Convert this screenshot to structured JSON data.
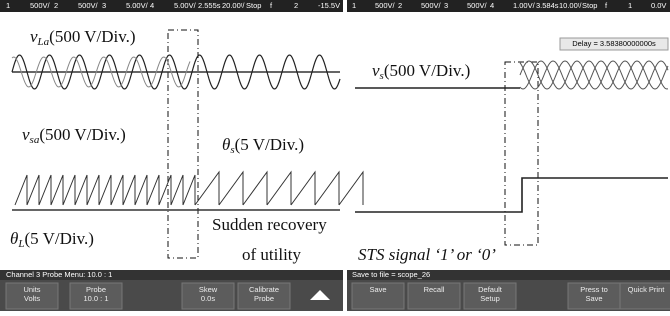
{
  "left_scope": {
    "status_bar": [
      "1",
      "500V/",
      "2",
      "500V/",
      "3",
      "5.00V/",
      "4",
      "5.00V/",
      "2.555s",
      "20.00ᵗ/",
      "Stop",
      "f",
      "2",
      "-15.5V"
    ],
    "annotations": {
      "v_la": {
        "symbol": "v",
        "sub": "La",
        "text": "(500 V/Div.)"
      },
      "v_sa": {
        "symbol": "v",
        "sub": "sa",
        "text": "(500  V/Div.)"
      },
      "theta_s": {
        "symbol": "θ",
        "sub": "s",
        "text": "(5 V/Div.)"
      },
      "theta_l": {
        "symbol": "θ",
        "sub": "L",
        "text": "(5 V/Div.)"
      },
      "recovery_1": "Sudden recovery",
      "recovery_2": "of utility"
    },
    "menu_title": "Channel 3 Probe Menu: 10.0 : 1",
    "buttons": [
      [
        "Units",
        "Volts"
      ],
      [
        "Probe",
        "10.0 : 1"
      ],
      [
        "Skew",
        "0.0s"
      ],
      [
        "Calibrate",
        "Probe"
      ]
    ]
  },
  "right_scope": {
    "status_bar": [
      "1",
      "500V/",
      "2",
      "500V/",
      "3",
      "500V/",
      "4",
      "1.00V/",
      "3.584s",
      "10.00ᵗ/",
      "Stop",
      "f",
      "1",
      "0.0V"
    ],
    "delay": "Delay = 3.58380000000s",
    "annotations": {
      "v_s": {
        "symbol": "v",
        "sub": "s",
        "text": "(500 V/Div.)"
      },
      "sts": "STS signal ‘1’ or ‘0’"
    },
    "menu_title": "Save to file = scope_26",
    "buttons": [
      [
        "Save"
      ],
      [
        "Recall"
      ],
      [
        "Default",
        "Setup"
      ],
      [
        "Press to",
        "Save"
      ],
      [
        "Quick Print"
      ]
    ]
  }
}
